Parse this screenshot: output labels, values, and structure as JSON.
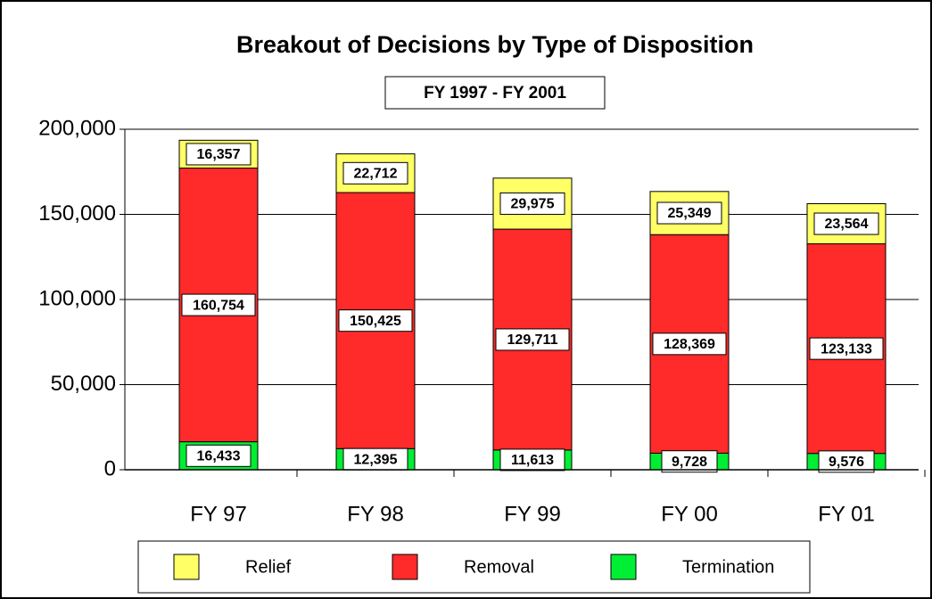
{
  "chart_data": {
    "type": "stacked_bar",
    "title": "Breakout of Decisions by Type of Disposition",
    "subtitle": "FY 1997 - FY 2001",
    "categories": [
      "FY 97",
      "FY 98",
      "FY 99",
      "FY 00",
      "FY 01"
    ],
    "series": [
      {
        "name": "Relief",
        "color": "#ffff66",
        "values": [
          16357,
          22712,
          29975,
          25349,
          23564
        ],
        "value_labels": [
          "16,357",
          "22,712",
          "29,975",
          "25,349",
          "23,564"
        ]
      },
      {
        "name": "Removal",
        "color": "#ff2a2a",
        "values": [
          160754,
          150425,
          129711,
          128369,
          123133
        ],
        "value_labels": [
          "160,754",
          "150,425",
          "129,711",
          "128,369",
          "123,133"
        ]
      },
      {
        "name": "Termination",
        "color": "#00ee33",
        "values": [
          16433,
          12395,
          11613,
          9728,
          9576
        ],
        "value_labels": [
          "16,433",
          "12,395",
          "11,613",
          "9,728",
          "9,576"
        ]
      }
    ],
    "ylim": [
      0,
      200000
    ],
    "yticks": [
      0,
      {
        "value": 50000,
        "label": "50,000"
      },
      {
        "value": 100000,
        "label": "100,000"
      },
      {
        "value": 150000,
        "label": "150,000"
      },
      {
        "value": 200000,
        "label": "200,000"
      }
    ],
    "grid": true
  }
}
